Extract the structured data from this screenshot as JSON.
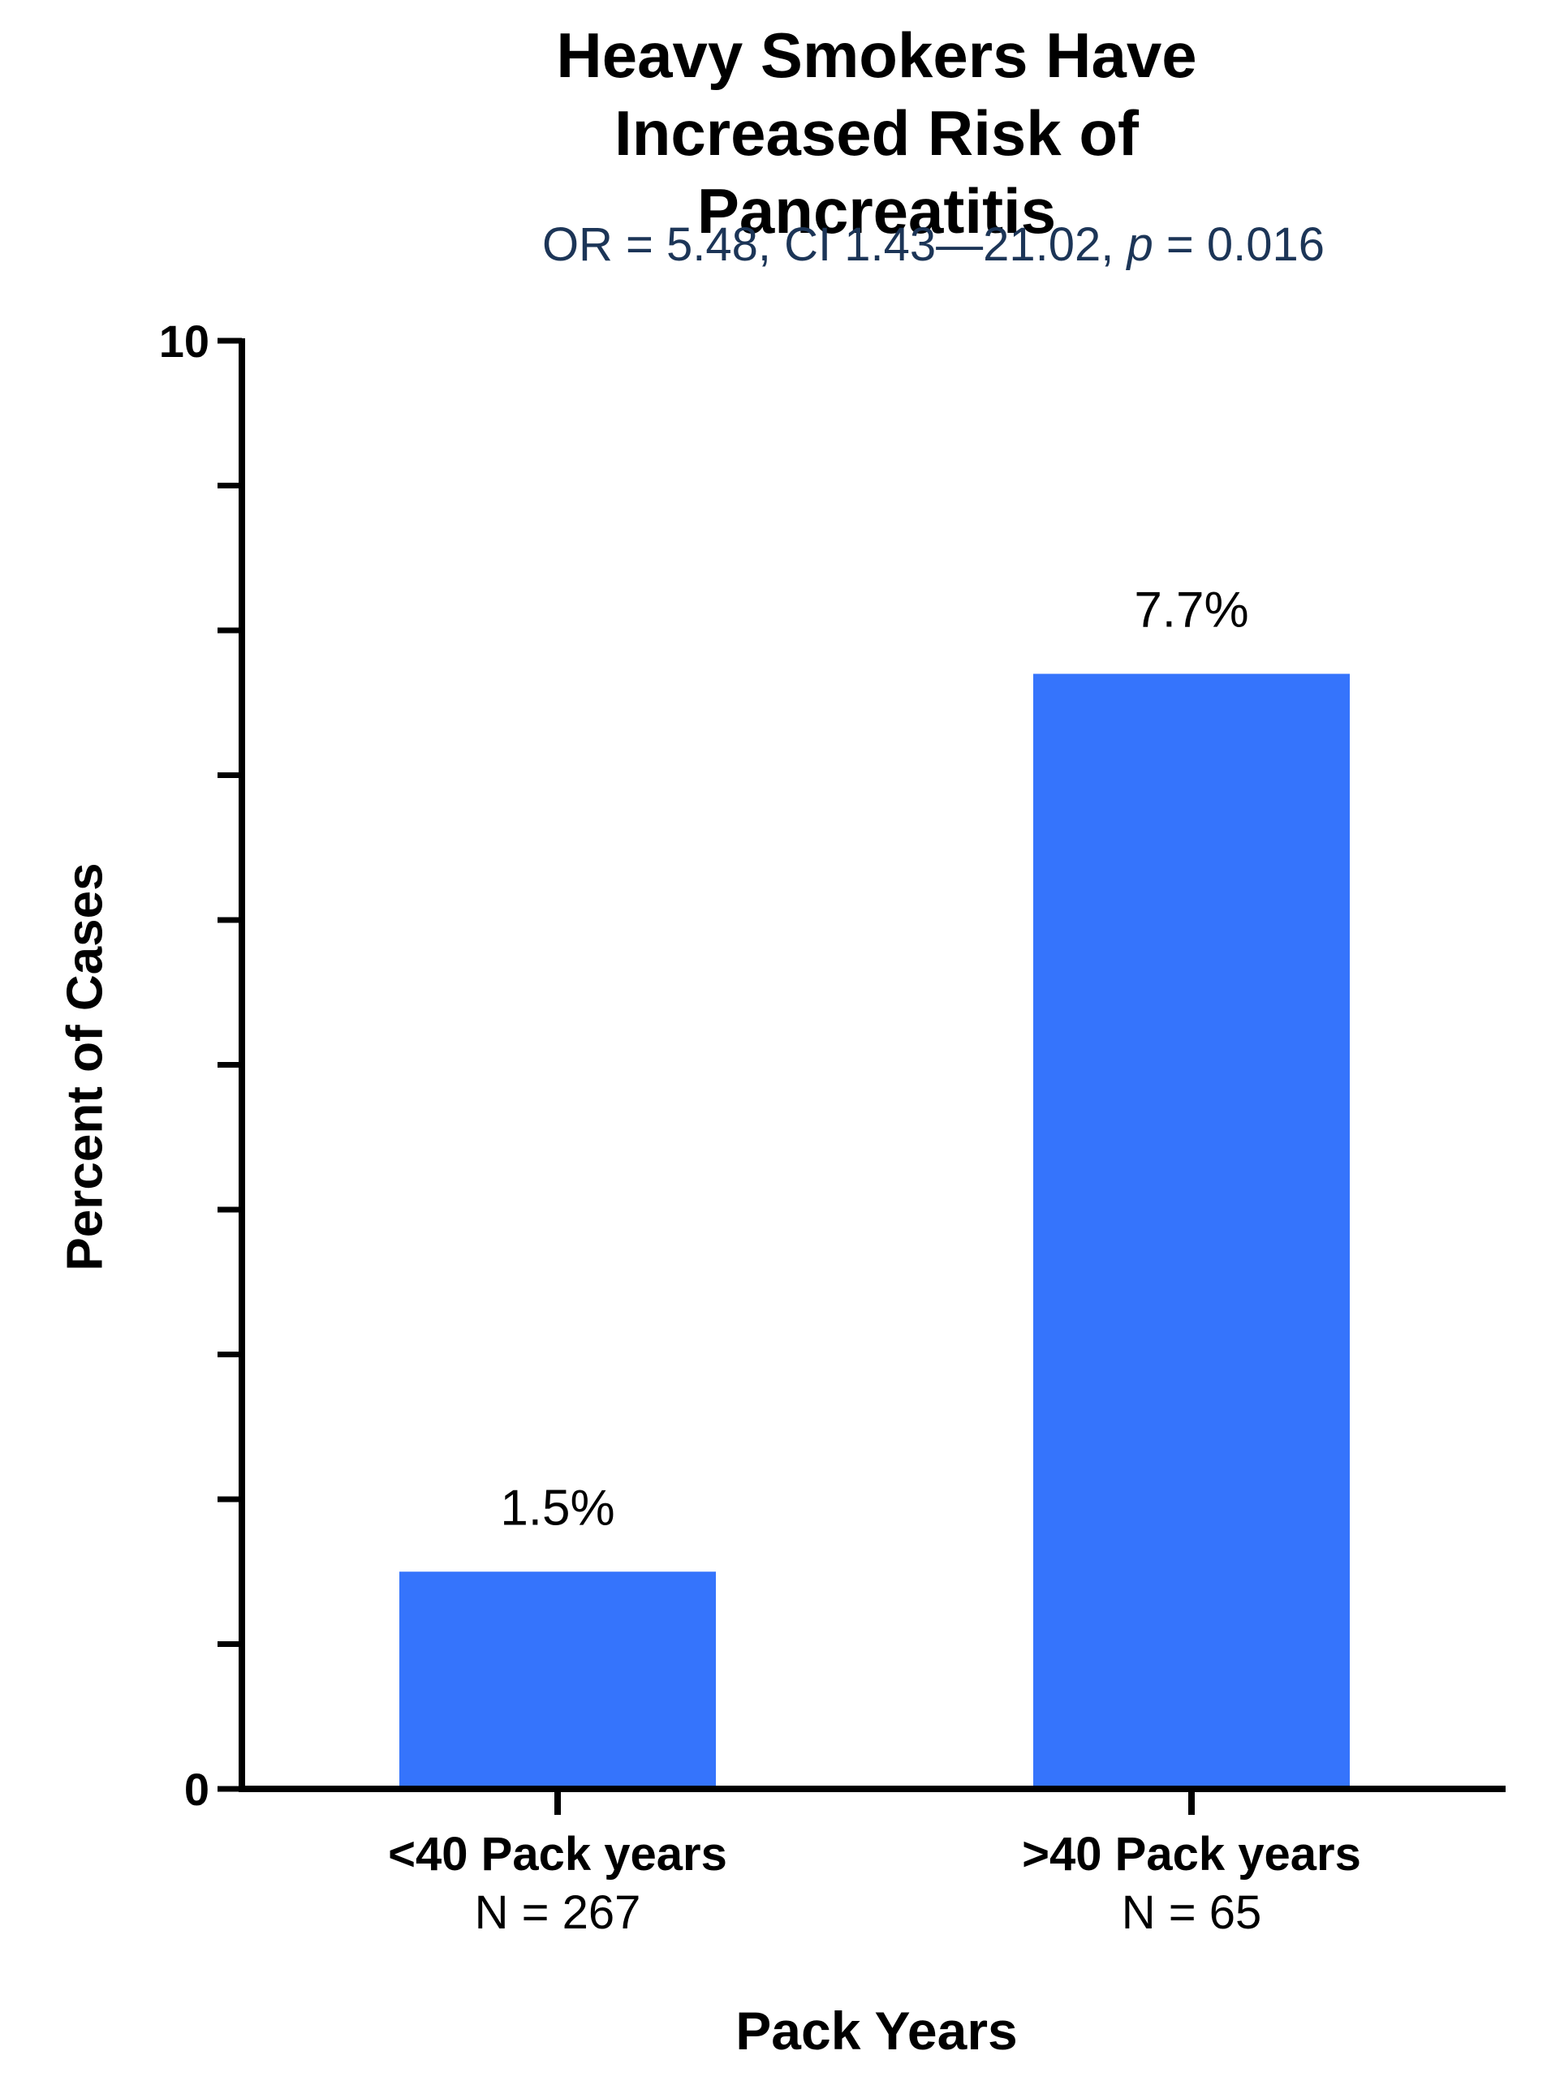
{
  "chart_data": {
    "type": "bar",
    "title": "Heavy Smokers Have Increased Risk of Pancreatitis",
    "subtitle": {
      "prefix": "OR = 5.48, CI 1.43—21.02, ",
      "p_symbol": "p",
      "suffix": " = 0.016"
    },
    "xlabel": "Pack Years",
    "ylabel": "Percent of Cases",
    "ylim": [
      0,
      10
    ],
    "yticks": [
      0,
      1,
      2,
      3,
      4,
      5,
      6,
      7,
      8,
      9,
      10
    ],
    "ytick_labels": [
      "0",
      "10"
    ],
    "categories": [
      "<40 Pack years",
      ">40 Pack years"
    ],
    "category_sublabels": [
      "N = 267",
      "N = 65"
    ],
    "values": [
      1.5,
      7.7
    ],
    "data_labels": [
      "1.5%",
      "7.7%"
    ],
    "bar_color": "#3574fc",
    "grid": false,
    "legend": "none"
  }
}
